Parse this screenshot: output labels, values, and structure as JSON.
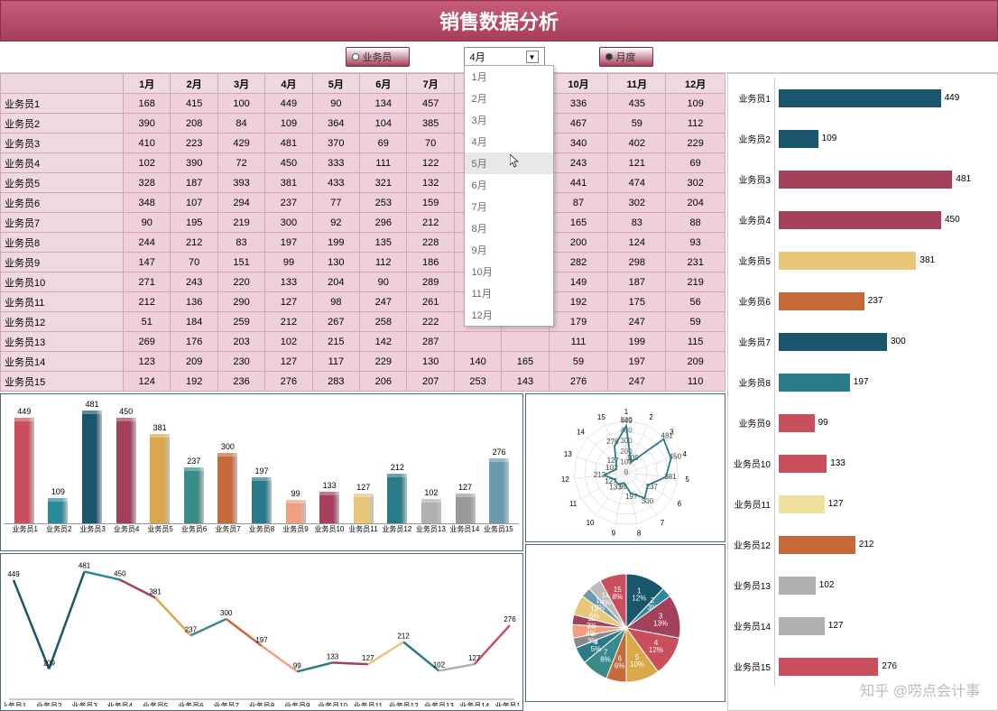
{
  "title": "销售数据分析",
  "controls": {
    "radio1_label": "业务员",
    "radio2_label": "月度",
    "radio_selected": 2,
    "dropdown_selected": "4月",
    "dropdown_options": [
      "1月",
      "2月",
      "3月",
      "4月",
      "5月",
      "6月",
      "7月",
      "8月",
      "9月",
      "10月",
      "11月",
      "12月"
    ],
    "dropdown_hover_index": 4
  },
  "table": {
    "col_headers": [
      "1月",
      "2月",
      "3月",
      "4月",
      "5月",
      "6月",
      "7月",
      "8月",
      "9月",
      "10月",
      "11月",
      "12月"
    ],
    "row_headers": [
      "业务员1",
      "业务员2",
      "业务员3",
      "业务员4",
      "业务员5",
      "业务员6",
      "业务员7",
      "业务员8",
      "业务员9",
      "业务员10",
      "业务员11",
      "业务员12",
      "业务员13",
      "业务员14",
      "业务员15"
    ],
    "data": [
      [
        168,
        415,
        100,
        449,
        90,
        134,
        457,
        null,
        null,
        336,
        435,
        109
      ],
      [
        390,
        208,
        84,
        109,
        364,
        104,
        385,
        null,
        null,
        467,
        59,
        112
      ],
      [
        410,
        223,
        429,
        481,
        370,
        69,
        70,
        null,
        null,
        340,
        402,
        229
      ],
      [
        102,
        390,
        72,
        450,
        333,
        111,
        122,
        null,
        null,
        243,
        121,
        69
      ],
      [
        328,
        187,
        393,
        381,
        433,
        321,
        132,
        null,
        null,
        441,
        474,
        302
      ],
      [
        348,
        107,
        294,
        237,
        77,
        253,
        159,
        null,
        null,
        87,
        302,
        204
      ],
      [
        90,
        195,
        219,
        300,
        92,
        296,
        212,
        null,
        null,
        165,
        83,
        88
      ],
      [
        244,
        212,
        83,
        197,
        199,
        135,
        228,
        null,
        null,
        200,
        124,
        93
      ],
      [
        147,
        70,
        151,
        99,
        130,
        112,
        186,
        null,
        null,
        282,
        298,
        231
      ],
      [
        271,
        243,
        220,
        133,
        204,
        90,
        289,
        null,
        null,
        149,
        187,
        219
      ],
      [
        212,
        136,
        290,
        127,
        98,
        247,
        261,
        null,
        null,
        192,
        175,
        56
      ],
      [
        51,
        184,
        259,
        212,
        267,
        258,
        222,
        null,
        null,
        179,
        247,
        59
      ],
      [
        269,
        176,
        203,
        102,
        215,
        142,
        287,
        null,
        null,
        111,
        199,
        115
      ],
      [
        123,
        209,
        230,
        127,
        117,
        229,
        130,
        140,
        165,
        59,
        197,
        209
      ],
      [
        124,
        192,
        236,
        276,
        283,
        206,
        207,
        253,
        143,
        276,
        247,
        110
      ]
    ],
    "hidden_cols": [
      7,
      8
    ]
  },
  "bar3d_chart": {
    "type": "bar",
    "categories": [
      "业务员1",
      "业务员2",
      "业务员3",
      "业务员4",
      "业务员5",
      "业务员6",
      "业务员7",
      "业务员8",
      "业务员9",
      "业务员10",
      "业务员11",
      "业务员12",
      "业务员13",
      "业务员14",
      "业务员15"
    ],
    "values": [
      449,
      109,
      481,
      450,
      381,
      237,
      300,
      197,
      99,
      133,
      127,
      212,
      102,
      127,
      276
    ],
    "colors": [
      "#c94f5d",
      "#2a8a9a",
      "#19566b",
      "#a3405a",
      "#d9a84a",
      "#3a8a8a",
      "#c76a3a",
      "#2a7a8a",
      "#f0a080",
      "#a3405a",
      "#e8c878",
      "#2a7a8a",
      "#b0b0b0",
      "#999",
      "#6a9ab0"
    ],
    "ymax": 500
  },
  "line_chart": {
    "type": "line",
    "categories": [
      "业务员1",
      "业务员2",
      "业务员3",
      "业务员4",
      "业务员5",
      "业务员6",
      "业务员7",
      "业务员8",
      "业务员9",
      "业务员10",
      "业务员11",
      "业务员12",
      "业务员13",
      "业务员14",
      "业务员15"
    ],
    "values": [
      449,
      109,
      481,
      450,
      381,
      237,
      300,
      197,
      99,
      133,
      127,
      212,
      102,
      127,
      276
    ],
    "seg_colors": [
      "#19566b",
      "#19566b",
      "#2a8a9a",
      "#a3405a",
      "#d9a84a",
      "#3a8a8a",
      "#c76a3a",
      "#f0a080",
      "#2a7a8a",
      "#a3405a",
      "#e8c878",
      "#2a7a8a",
      "#b0b0b0",
      "#c94f5d"
    ],
    "ymax": 500
  },
  "radar_chart": {
    "type": "radar",
    "n": 15,
    "values": [
      449,
      109,
      481,
      450,
      381,
      237,
      300,
      197,
      99,
      133,
      127,
      212,
      102,
      127,
      276
    ],
    "ring_labels": [
      "500",
      "400",
      "300",
      "200",
      "100",
      "0"
    ],
    "max": 500,
    "line_color": "#2a7a8a",
    "grid_color": "#ccc"
  },
  "pie_chart": {
    "type": "pie",
    "slices": [
      {
        "label": "1",
        "pct": "12%",
        "color": "#19566b"
      },
      {
        "label": "2",
        "pct": "3%",
        "color": "#2a8a9a"
      },
      {
        "label": "3",
        "pct": "13%",
        "color": "#a3405a"
      },
      {
        "label": "4",
        "pct": "12%",
        "color": "#c94f5d"
      },
      {
        "label": "5",
        "pct": "10%",
        "color": "#d9a84a"
      },
      {
        "label": "6",
        "pct": "6%",
        "color": "#c76a3a"
      },
      {
        "label": "7",
        "pct": "8%",
        "color": "#3a8a8a"
      },
      {
        "label": "8",
        "pct": "5%",
        "color": "#2a7a8a"
      },
      {
        "label": "9",
        "pct": "3%",
        "color": "#888"
      },
      {
        "label": "10",
        "pct": "4%",
        "color": "#f0a080"
      },
      {
        "label": "11",
        "pct": "3%",
        "color": "#a3405a"
      },
      {
        "label": "12",
        "pct": "6%",
        "color": "#e8c878"
      },
      {
        "label": "13",
        "pct": "3%",
        "color": "#6a9ab0"
      },
      {
        "label": "14",
        "pct": "4%",
        "color": "#bbb"
      },
      {
        "label": "15",
        "pct": "8%",
        "color": "#c94f5d"
      }
    ]
  },
  "hbar_chart": {
    "type": "hbar",
    "categories": [
      "业务员1",
      "业务员2",
      "业务员3",
      "业务员4",
      "业务员5",
      "业务员6",
      "业务员7",
      "业务员8",
      "业务员9",
      "业务员10",
      "业务员11",
      "业务员12",
      "业务员13",
      "业务员14",
      "业务员15"
    ],
    "values": [
      449,
      109,
      481,
      450,
      381,
      237,
      300,
      197,
      99,
      133,
      127,
      212,
      102,
      127,
      276
    ],
    "colors": [
      "#19566b",
      "#19566b",
      "#a3405a",
      "#a3405a",
      "#e8c878",
      "#c76a3a",
      "#19566b",
      "#2a7a8a",
      "#c94f5d",
      "#c94f5d",
      "#f0e0a0",
      "#c76a3a",
      "#b0b0b0",
      "#b0b0b0",
      "#c94f5d"
    ],
    "xmax": 500
  },
  "watermark": "知乎 @唠点会计事",
  "colors": {
    "panel_border": "#4a6a7a",
    "table_bg1": "#f5e0e8",
    "table_bg2": "#efd0da",
    "header_bg": "#f0d8e0"
  }
}
